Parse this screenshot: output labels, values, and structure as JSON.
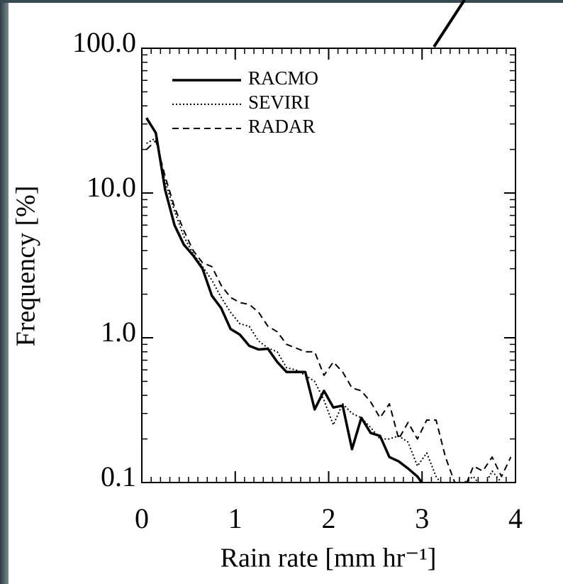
{
  "chart_data": {
    "type": "line",
    "x_label": "Rain rate [mm hr⁻¹]",
    "y_label": "Frequency [%]",
    "x": [
      0.05,
      0.15,
      0.25,
      0.35,
      0.45,
      0.55,
      0.65,
      0.75,
      0.85,
      0.95,
      1.05,
      1.15,
      1.25,
      1.35,
      1.45,
      1.55,
      1.65,
      1.75,
      1.85,
      1.95,
      2.05,
      2.15,
      2.25,
      2.35,
      2.45,
      2.55,
      2.65,
      2.75,
      2.85,
      2.95,
      3.05,
      3.15,
      3.25,
      3.35,
      3.45,
      3.55,
      3.65,
      3.75,
      3.85,
      3.95
    ],
    "series": [
      {
        "name": "RACMO",
        "color": "#000000",
        "line_style": "solid",
        "values": [
          33,
          26,
          10.5,
          6,
          4.4,
          3.7,
          3.0,
          1.95,
          1.6,
          1.15,
          1.05,
          0.88,
          0.83,
          0.84,
          0.68,
          0.58,
          0.58,
          0.58,
          0.32,
          0.43,
          0.33,
          0.34,
          0.17,
          0.28,
          0.22,
          0.21,
          0.15,
          0.14,
          0.125,
          0.11,
          0.09,
          null,
          null,
          null,
          null,
          null,
          null,
          null,
          null,
          null
        ]
      },
      {
        "name": "SEVIRI",
        "color": "#000000",
        "line_style": "dotted",
        "values": [
          22,
          24,
          12,
          7.5,
          5,
          3.8,
          3.1,
          2.5,
          1.9,
          1.5,
          1.25,
          1.2,
          0.95,
          0.85,
          0.8,
          0.62,
          0.6,
          0.55,
          0.5,
          0.37,
          0.25,
          0.35,
          0.3,
          0.28,
          0.24,
          0.2,
          0.2,
          0.21,
          0.19,
          0.13,
          0.16,
          0.11,
          0.09,
          0.08,
          0.1,
          0.11,
          0.09,
          0.12,
          0.1,
          0.09
        ]
      },
      {
        "name": "RADAR",
        "color": "#000000",
        "line_style": "dashed",
        "values": [
          20,
          23,
          13,
          8,
          5.5,
          4,
          3.3,
          3.1,
          2.3,
          1.9,
          1.75,
          1.7,
          1.5,
          1.2,
          1.1,
          0.9,
          0.85,
          0.8,
          0.8,
          0.55,
          0.68,
          0.58,
          0.45,
          0.43,
          0.36,
          0.28,
          0.35,
          0.2,
          0.26,
          0.2,
          0.27,
          0.27,
          0.15,
          0.1,
          0.09,
          0.13,
          0.12,
          0.15,
          0.11,
          0.15
        ]
      }
    ],
    "xlim": [
      0,
      4
    ],
    "xticks": [
      0,
      1,
      2,
      3,
      4
    ],
    "ylim": [
      0.1,
      100
    ],
    "y_scale": "log",
    "yticks": [
      0.1,
      {
        "value": 1,
        "label": "1.0"
      },
      {
        "value": 10,
        "label": "10.0"
      },
      {
        "value": 100,
        "label": "100.0"
      }
    ],
    "legend": "upper left"
  }
}
